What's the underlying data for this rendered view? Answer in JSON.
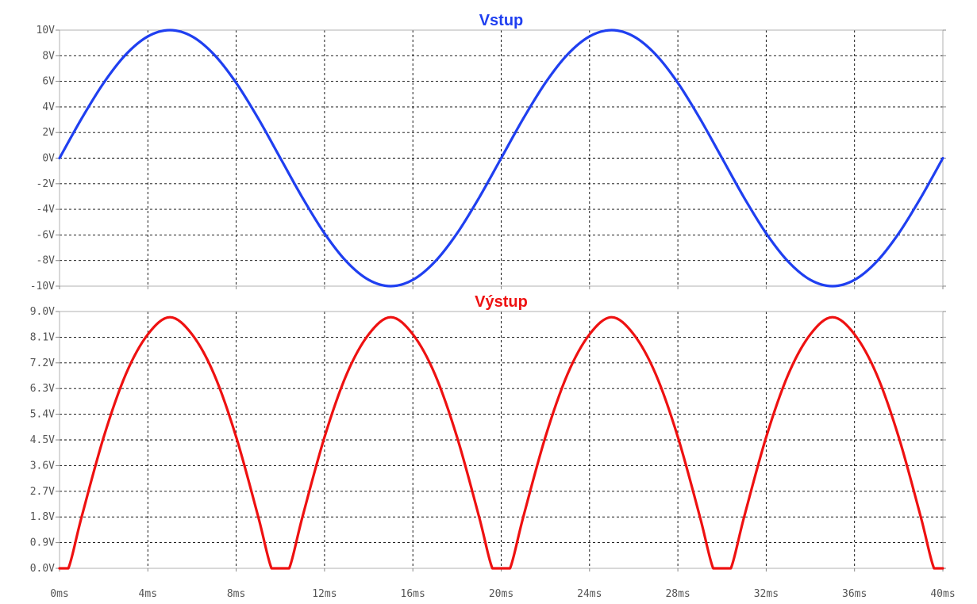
{
  "chart_data": [
    {
      "type": "line",
      "title": "Vstup",
      "title_color": "#1f3ff0",
      "series": [
        {
          "color": "#1f3ff0",
          "x": [
            0,
            1,
            2,
            3,
            4,
            5,
            6,
            7,
            8,
            9,
            10,
            11,
            12,
            13,
            14,
            15,
            16,
            17,
            18,
            19,
            20,
            21,
            22,
            23,
            24,
            25,
            26,
            27,
            28,
            29,
            30,
            31,
            32,
            33,
            34,
            35,
            36,
            37,
            38,
            39,
            40
          ],
          "y": [
            0,
            3.09,
            5.88,
            8.09,
            9.51,
            10,
            9.51,
            8.09,
            5.88,
            3.09,
            0,
            -3.09,
            -5.88,
            -8.09,
            -9.51,
            -10,
            -9.51,
            -8.09,
            -5.88,
            -3.09,
            0,
            3.09,
            5.88,
            8.09,
            9.51,
            10,
            9.51,
            8.09,
            5.88,
            3.09,
            0,
            -3.09,
            -5.88,
            -8.09,
            -9.51,
            -10,
            -9.51,
            -8.09,
            -5.88,
            -3.09,
            0
          ]
        }
      ],
      "x_unit": "ms",
      "y_unit": "V",
      "xlim": [
        0,
        40
      ],
      "ylim": [
        -10,
        10
      ],
      "x_ticks": [
        0,
        4,
        8,
        12,
        16,
        20,
        24,
        28,
        32,
        36,
        40
      ],
      "x_tick_labels": [],
      "y_ticks": [
        10,
        8,
        6,
        4,
        2,
        0,
        -2,
        -4,
        -6,
        -8,
        -10
      ],
      "y_tick_labels": [
        "10V",
        "8V",
        "6V",
        "4V",
        "2V",
        "0V",
        "-2V",
        "-4V",
        "-6V",
        "-8V",
        "-10V"
      ],
      "grid": true
    },
    {
      "type": "line",
      "title": "Výstup",
      "title_color": "#ee1111",
      "series": [
        {
          "color": "#ee1111",
          "x": [
            0,
            0.4,
            1,
            2,
            3,
            4,
            5,
            6,
            7,
            8,
            9,
            9.6,
            10,
            10.4,
            11,
            12,
            13,
            14,
            15,
            16,
            17,
            18,
            19,
            19.6,
            20,
            20.4,
            21,
            22,
            23,
            24,
            25,
            26,
            27,
            28,
            29,
            29.6,
            30,
            30.4,
            31,
            32,
            33,
            34,
            35,
            36,
            37,
            38,
            39,
            39.6,
            40
          ],
          "y": [
            0,
            0,
            1.8,
            4.6,
            6.8,
            8.2,
            8.8,
            8.2,
            6.8,
            4.6,
            1.8,
            0,
            0,
            0,
            1.8,
            4.6,
            6.8,
            8.2,
            8.8,
            8.2,
            6.8,
            4.6,
            1.8,
            0,
            0,
            0,
            1.8,
            4.6,
            6.8,
            8.2,
            8.8,
            8.2,
            6.8,
            4.6,
            1.8,
            0,
            0,
            0,
            1.8,
            4.6,
            6.8,
            8.2,
            8.8,
            8.2,
            6.8,
            4.6,
            1.8,
            0,
            0
          ]
        }
      ],
      "x_unit": "ms",
      "y_unit": "V",
      "xlim": [
        0,
        40
      ],
      "ylim": [
        0,
        9
      ],
      "x_ticks": [
        0,
        4,
        8,
        12,
        16,
        20,
        24,
        28,
        32,
        36,
        40
      ],
      "x_tick_labels": [
        "0ms",
        "4ms",
        "8ms",
        "12ms",
        "16ms",
        "20ms",
        "24ms",
        "28ms",
        "32ms",
        "36ms",
        "40ms"
      ],
      "y_ticks": [
        9,
        8.1,
        7.2,
        6.3,
        5.4,
        4.5,
        3.6,
        2.7,
        1.8,
        0.9,
        0
      ],
      "y_tick_labels": [
        "9.0V",
        "8.1V",
        "7.2V",
        "6.3V",
        "5.4V",
        "4.5V",
        "3.6V",
        "2.7V",
        "1.8V",
        "0.9V",
        "0.0V"
      ],
      "grid": true
    }
  ]
}
